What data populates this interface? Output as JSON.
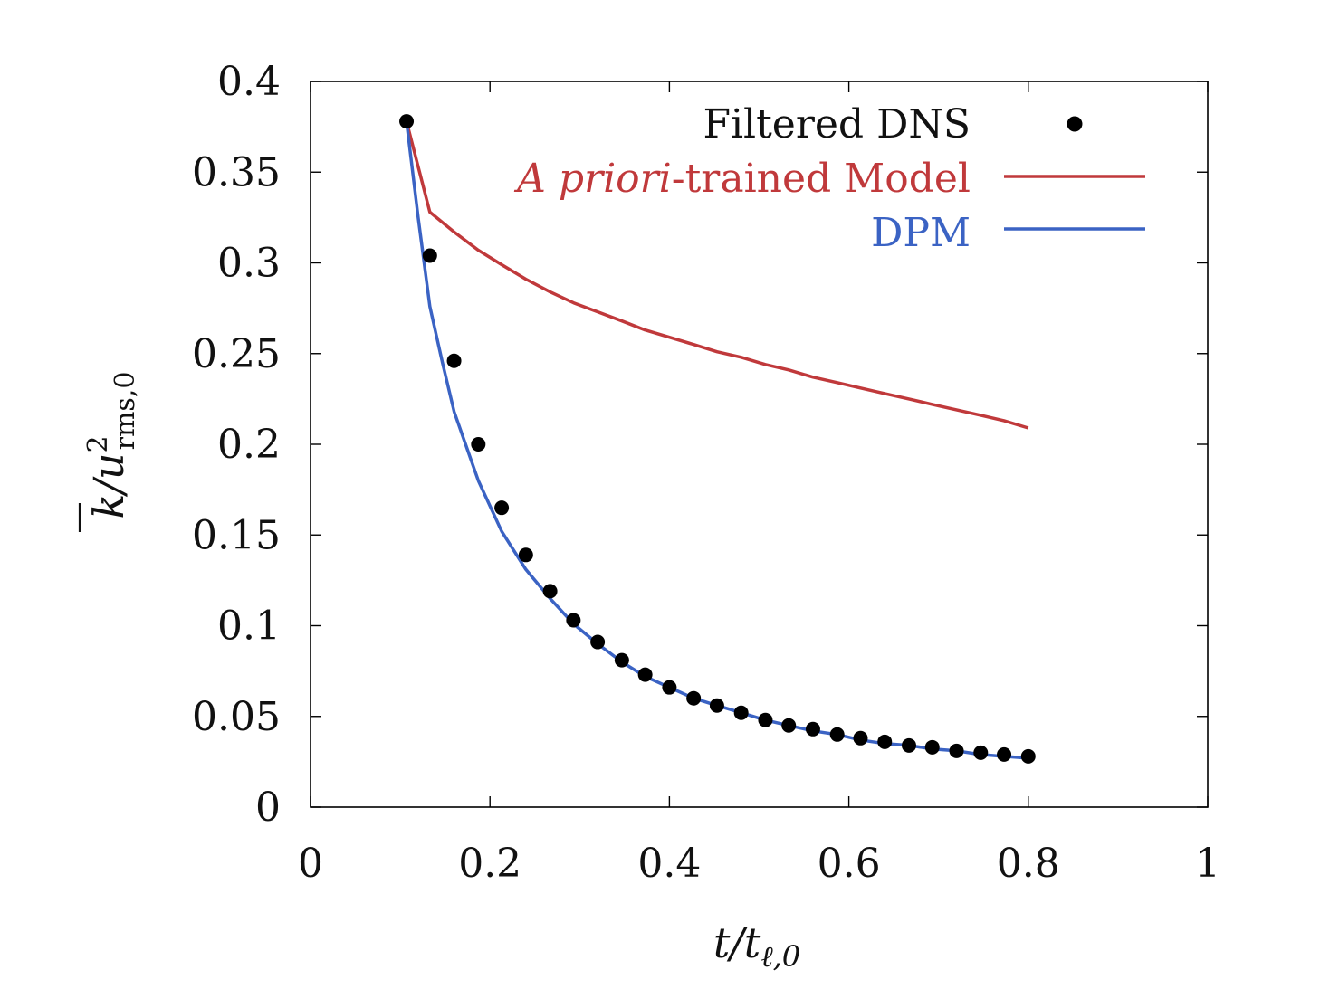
{
  "chart_data": {
    "type": "line",
    "title": "",
    "xlabel": "t/t_{ℓ,0}",
    "ylabel": "k̄/u²_{rms,0}",
    "xlabel_parts": {
      "main": "t/t",
      "sub": "ℓ,0"
    },
    "ylabel_parts": {
      "main": "k/u",
      "sup": "2",
      "sub": "rms,0"
    },
    "xlim": [
      0,
      1
    ],
    "ylim": [
      0,
      0.4
    ],
    "xticks": [
      0,
      0.2,
      0.4,
      0.6,
      0.8,
      1
    ],
    "xtick_labels": [
      "0",
      "0.2",
      "0.4",
      "0.6",
      "0.8",
      "1"
    ],
    "yticks": [
      0,
      0.05,
      0.1,
      0.15,
      0.2,
      0.25,
      0.3,
      0.35,
      0.4
    ],
    "ytick_labels": [
      "0",
      "0.05",
      "0.1",
      "0.15",
      "0.2",
      "0.25",
      "0.3",
      "0.35",
      "0.4"
    ],
    "legend_position": "top-right",
    "series": [
      {
        "name": "Filtered DNS",
        "legend_label": "Filtered DNS",
        "style": "markers",
        "color": "#000000",
        "x": [
          0.107,
          0.133,
          0.16,
          0.187,
          0.213,
          0.24,
          0.267,
          0.293,
          0.32,
          0.347,
          0.373,
          0.4,
          0.427,
          0.453,
          0.48,
          0.507,
          0.533,
          0.56,
          0.587,
          0.613,
          0.64,
          0.667,
          0.693,
          0.72,
          0.747,
          0.773,
          0.8
        ],
        "y": [
          0.378,
          0.304,
          0.246,
          0.2,
          0.165,
          0.139,
          0.119,
          0.103,
          0.091,
          0.081,
          0.073,
          0.066,
          0.06,
          0.056,
          0.052,
          0.048,
          0.045,
          0.043,
          0.04,
          0.038,
          0.036,
          0.034,
          0.033,
          0.031,
          0.03,
          0.029,
          0.028
        ]
      },
      {
        "name": "A priori-trained Model",
        "legend_label_italic": "A priori",
        "legend_label_rest": "-trained Model",
        "style": "line",
        "color": "#c0393b",
        "x": [
          0.107,
          0.133,
          0.16,
          0.187,
          0.213,
          0.24,
          0.267,
          0.293,
          0.32,
          0.347,
          0.373,
          0.4,
          0.427,
          0.453,
          0.48,
          0.507,
          0.533,
          0.56,
          0.587,
          0.613,
          0.64,
          0.667,
          0.693,
          0.72,
          0.747,
          0.773,
          0.8
        ],
        "y": [
          0.378,
          0.328,
          0.317,
          0.307,
          0.299,
          0.291,
          0.284,
          0.278,
          0.273,
          0.268,
          0.263,
          0.259,
          0.255,
          0.251,
          0.248,
          0.244,
          0.241,
          0.237,
          0.234,
          0.231,
          0.228,
          0.225,
          0.222,
          0.219,
          0.216,
          0.213,
          0.209
        ]
      },
      {
        "name": "DPM",
        "legend_label": "DPM",
        "style": "line",
        "color": "#3b63c4",
        "x": [
          0.107,
          0.12,
          0.133,
          0.147,
          0.16,
          0.187,
          0.213,
          0.24,
          0.267,
          0.293,
          0.32,
          0.347,
          0.373,
          0.4,
          0.427,
          0.453,
          0.48,
          0.507,
          0.533,
          0.56,
          0.587,
          0.613,
          0.64,
          0.667,
          0.693,
          0.72,
          0.747,
          0.773,
          0.8
        ],
        "y": [
          0.378,
          0.325,
          0.276,
          0.245,
          0.218,
          0.18,
          0.152,
          0.131,
          0.115,
          0.101,
          0.09,
          0.08,
          0.072,
          0.066,
          0.06,
          0.056,
          0.052,
          0.048,
          0.045,
          0.042,
          0.04,
          0.037,
          0.035,
          0.034,
          0.032,
          0.031,
          0.029,
          0.028,
          0.027
        ]
      }
    ]
  }
}
